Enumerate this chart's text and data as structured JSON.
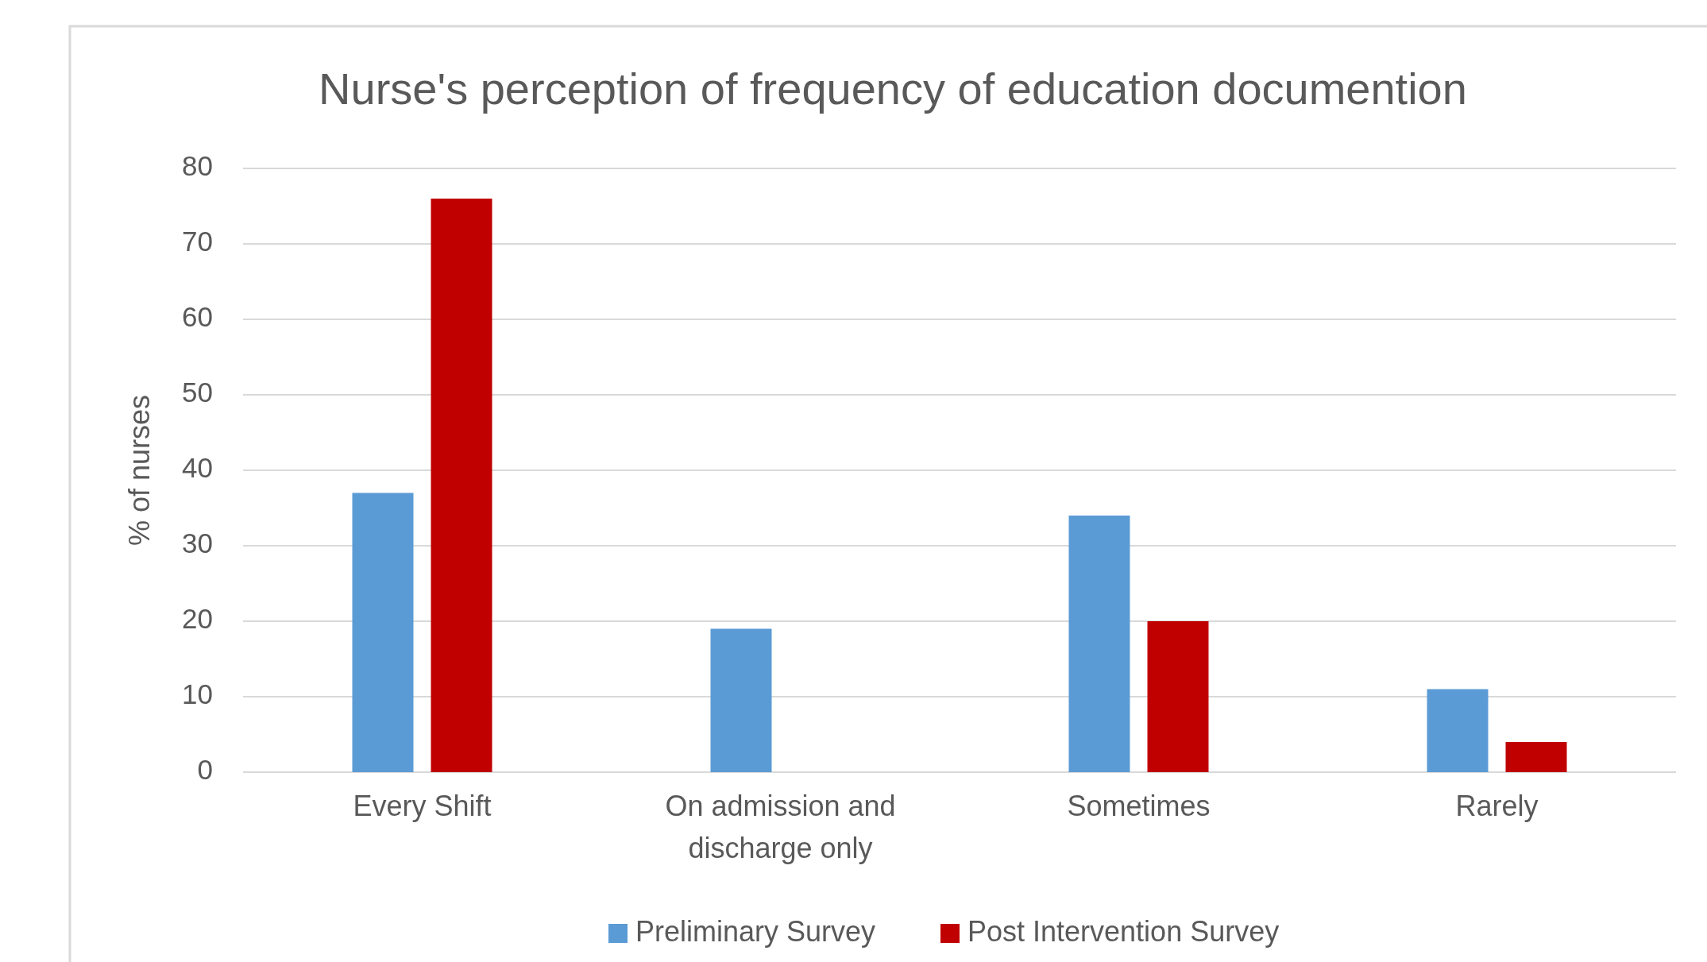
{
  "chart_data": {
    "type": "bar",
    "title": "Nurse's perception of frequency of education documention",
    "ylabel": "% of nurses",
    "categories": [
      "Every Shift",
      "On admission and discharge only",
      "Sometimes",
      "Rarely"
    ],
    "series": [
      {
        "name": "Preliminary Survey",
        "color": "#5b9bd5",
        "values": [
          37,
          19,
          34,
          11
        ]
      },
      {
        "name": "Post Intervention Survey",
        "color": "#c00000",
        "values": [
          76,
          0,
          20,
          4
        ]
      }
    ],
    "ylim": [
      0,
      80
    ],
    "yticks": [
      0,
      10,
      20,
      30,
      40,
      50,
      60,
      70,
      80
    ],
    "grid": "y",
    "legend": "bottom"
  }
}
